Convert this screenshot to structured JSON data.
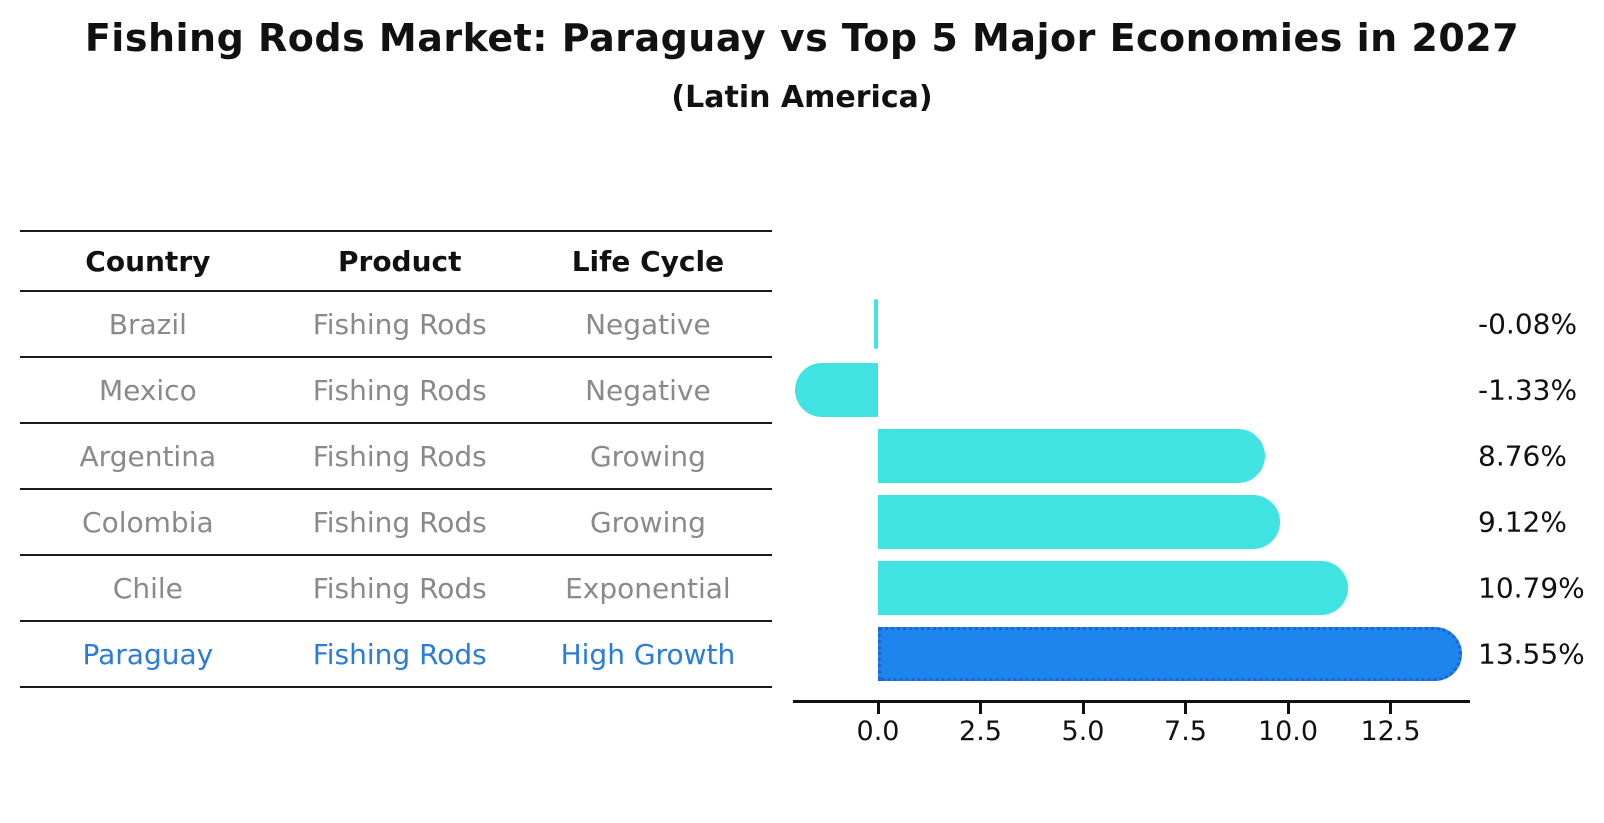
{
  "title": "Fishing Rods Market: Paraguay vs Top 5 Major Economies in 2027",
  "subtitle": "(Latin America)",
  "table": {
    "headers": [
      "Country",
      "Product",
      "Life Cycle"
    ],
    "rows": [
      {
        "country": "Brazil",
        "product": "Fishing Rods",
        "life_cycle": "Negative",
        "highlight": false
      },
      {
        "country": "Mexico",
        "product": "Fishing Rods",
        "life_cycle": "Negative",
        "highlight": false
      },
      {
        "country": "Argentina",
        "product": "Fishing Rods",
        "life_cycle": "Growing",
        "highlight": false
      },
      {
        "country": "Colombia",
        "product": "Fishing Rods",
        "life_cycle": "Growing",
        "highlight": false
      },
      {
        "country": "Chile",
        "product": "Fishing Rods",
        "life_cycle": "Exponential",
        "highlight": false
      },
      {
        "country": "Paraguay",
        "product": "Fishing Rods",
        "life_cycle": "High Growth",
        "highlight": true
      }
    ]
  },
  "chart_data": {
    "type": "bar",
    "orientation": "horizontal",
    "title": "Fishing Rods Market: Paraguay vs Top 5 Major Economies in 2027",
    "subtitle": "(Latin America)",
    "categories": [
      "Brazil",
      "Mexico",
      "Argentina",
      "Colombia",
      "Chile",
      "Paraguay"
    ],
    "values": [
      -0.08,
      -1.33,
      8.76,
      9.12,
      10.79,
      13.55
    ],
    "value_labels": [
      "-0.08%",
      "-1.33%",
      "8.76%",
      "9.12%",
      "10.79%",
      "13.55%"
    ],
    "x_ticks": [
      0.0,
      2.5,
      5.0,
      7.5,
      10.0,
      12.5
    ],
    "x_tick_labels": [
      "0.0",
      "2.5",
      "5.0",
      "7.5",
      "10.0",
      "12.5"
    ],
    "xlim": [
      -2.0,
      14.4
    ],
    "grid": false,
    "legend": "none",
    "bar_color": "#40E2E2",
    "highlight_index": 5,
    "highlight_bar_color": "#1E84EE",
    "highlight_bar_border_color": "#1A66CC",
    "highlight_text_color": "#2B7CD9"
  }
}
